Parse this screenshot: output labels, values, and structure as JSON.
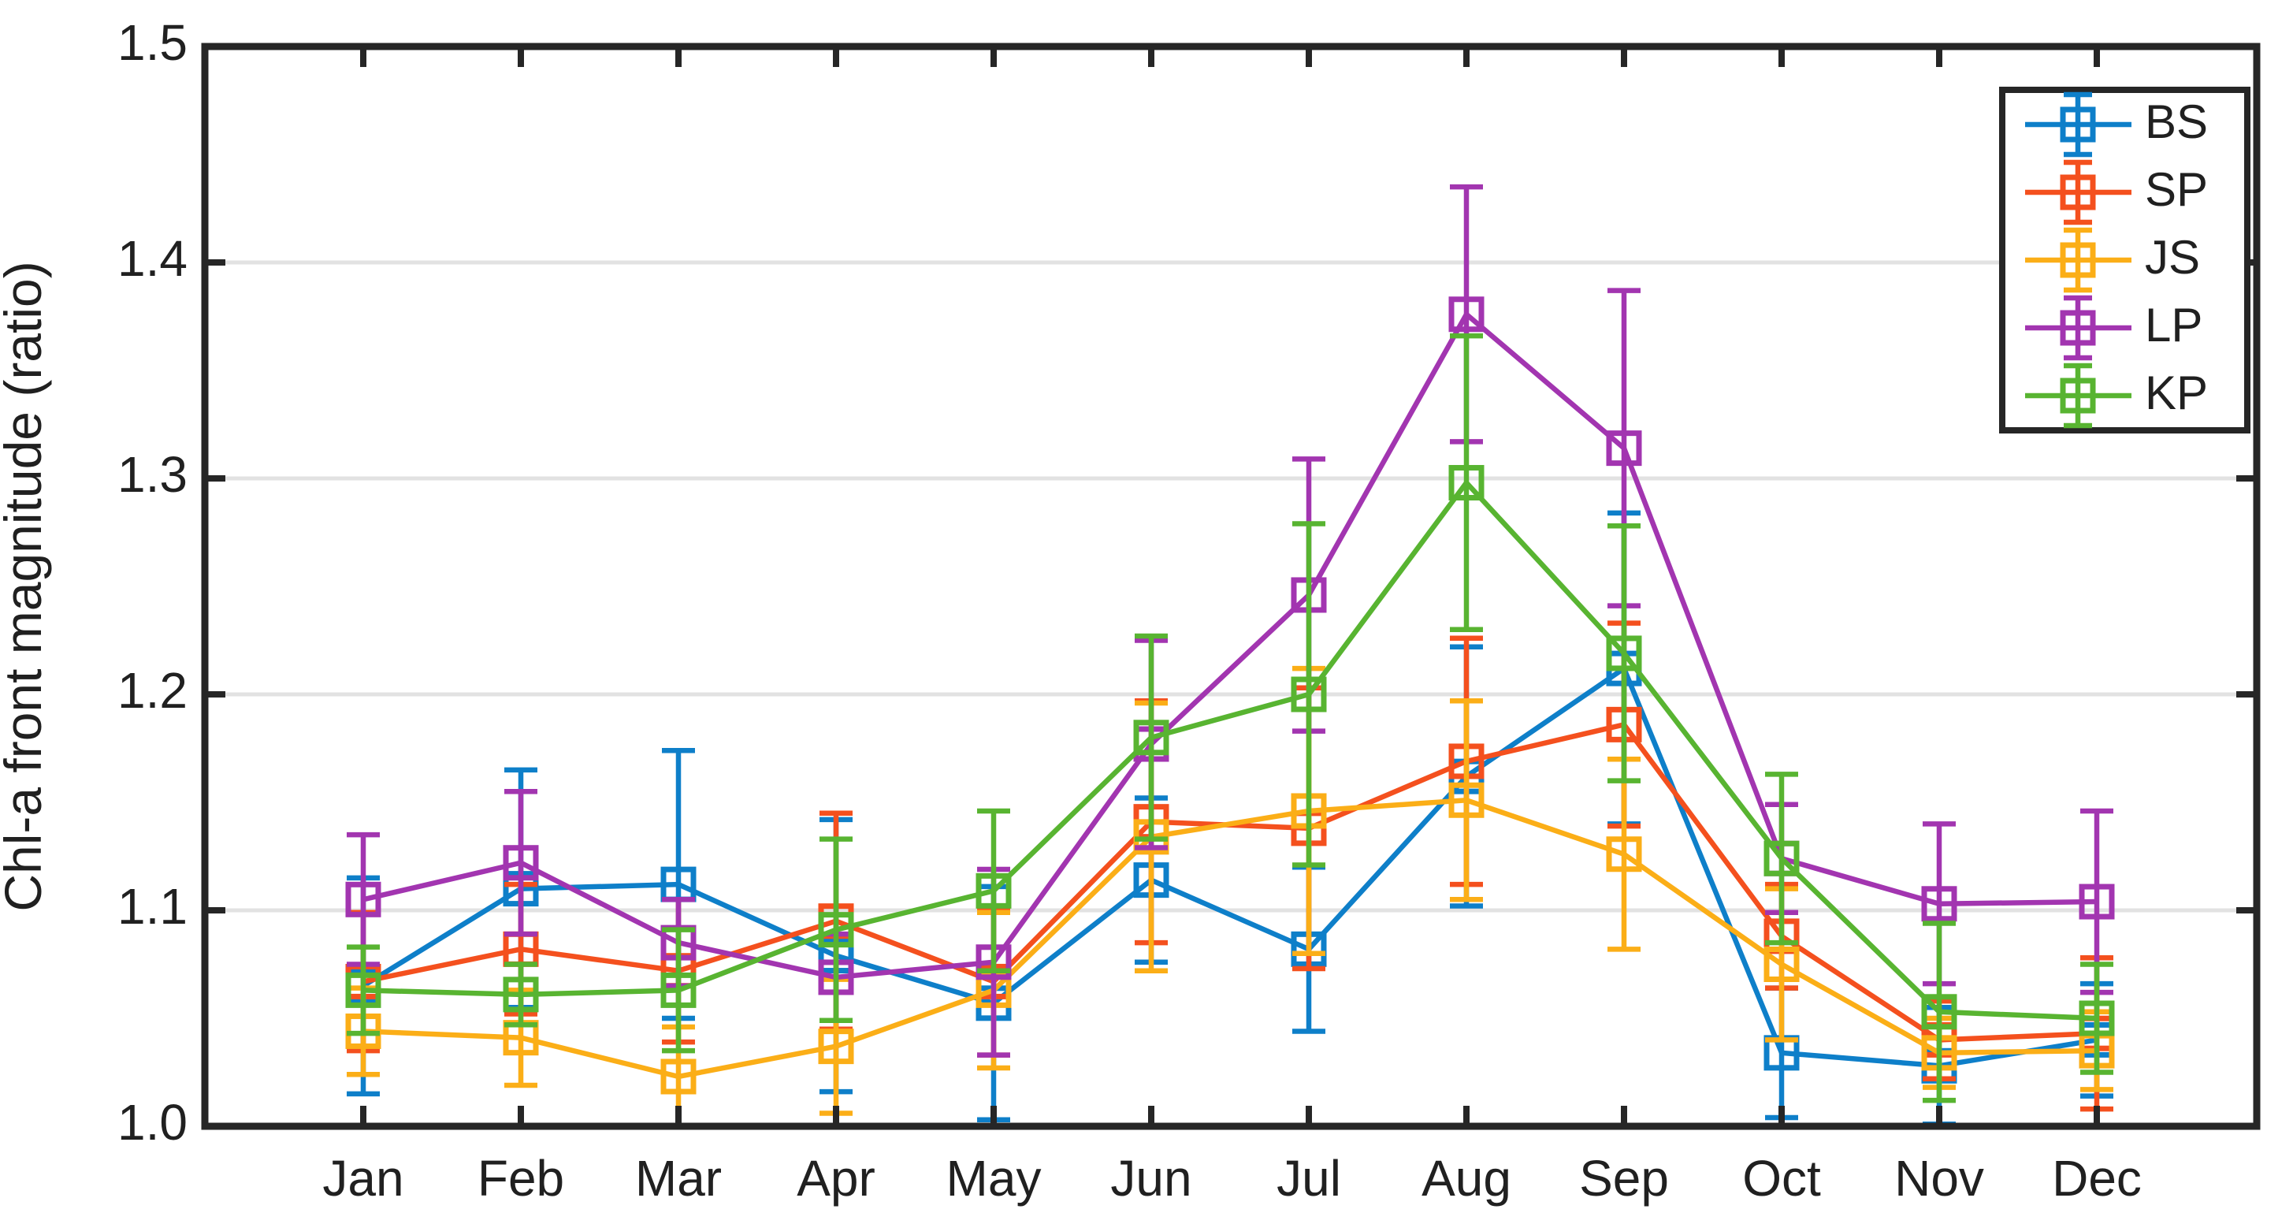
{
  "chart_data": {
    "type": "line",
    "title": "",
    "xlabel": "",
    "ylabel": "Chl-a front magnitude (ratio)",
    "categories": [
      "Jan",
      "Feb",
      "Mar",
      "Apr",
      "May",
      "Jun",
      "Jul",
      "Aug",
      "Sep",
      "Oct",
      "Nov",
      "Dec"
    ],
    "ytick_labels": [
      "1.0",
      "1.1",
      "1.2",
      "1.3",
      "1.4",
      "1.5"
    ],
    "yticks": [
      1.0,
      1.1,
      1.2,
      1.3,
      1.4,
      1.5
    ],
    "ylim": [
      1.0,
      1.5
    ],
    "grid": "horizontal-only",
    "gridline_values": [
      1.1,
      1.2,
      1.3,
      1.4
    ],
    "legend_position": "top-right",
    "marker": "open-square",
    "error_bars": true,
    "axis_color": "#262626",
    "gridline_color": "#e2e2e2",
    "background_color": "#ffffff",
    "series": [
      {
        "name": "BS",
        "color": "#0e7fc9",
        "values": [
          1.065,
          1.11,
          1.112,
          1.079,
          1.057,
          1.114,
          1.082,
          1.162,
          1.212,
          1.034,
          1.028,
          1.04
        ],
        "errors": [
          0.05,
          0.055,
          0.062,
          0.063,
          0.054,
          0.038,
          0.038,
          0.06,
          0.072,
          0.03,
          0.027,
          0.026
        ]
      },
      {
        "name": "SP",
        "color": "#f4501e",
        "values": [
          1.067,
          1.082,
          1.072,
          1.095,
          1.067,
          1.141,
          1.138,
          1.169,
          1.186,
          1.088,
          1.04,
          1.043
        ],
        "errors": [
          0.032,
          0.03,
          0.033,
          0.05,
          0.034,
          0.056,
          0.065,
          0.057,
          0.047,
          0.024,
          0.018,
          0.035
        ]
      },
      {
        "name": "JS",
        "color": "#fbae17",
        "values": [
          1.044,
          1.041,
          1.023,
          1.037,
          1.063,
          1.134,
          1.146,
          1.151,
          1.126,
          1.075,
          1.034,
          1.035
        ],
        "errors": [
          0.02,
          0.022,
          0.023,
          0.031,
          0.036,
          0.062,
          0.066,
          0.046,
          0.044,
          0.035,
          0.016,
          0.018
        ]
      },
      {
        "name": "LP",
        "color": "#a235b0",
        "values": [
          1.105,
          1.122,
          1.085,
          1.069,
          1.076,
          1.177,
          1.246,
          1.376,
          1.314,
          1.124,
          1.103,
          1.104
        ],
        "errors": [
          0.03,
          0.033,
          0.02,
          0.02,
          0.043,
          0.048,
          0.063,
          0.059,
          0.073,
          0.025,
          0.037,
          0.042
        ]
      },
      {
        "name": "KP",
        "color": "#58b431",
        "values": [
          1.063,
          1.061,
          1.063,
          1.091,
          1.109,
          1.18,
          1.2,
          1.298,
          1.219,
          1.124,
          1.053,
          1.05
        ],
        "errors": [
          0.02,
          0.014,
          0.028,
          0.042,
          0.037,
          0.047,
          0.079,
          0.068,
          0.059,
          0.039,
          0.041,
          0.025
        ]
      }
    ]
  }
}
